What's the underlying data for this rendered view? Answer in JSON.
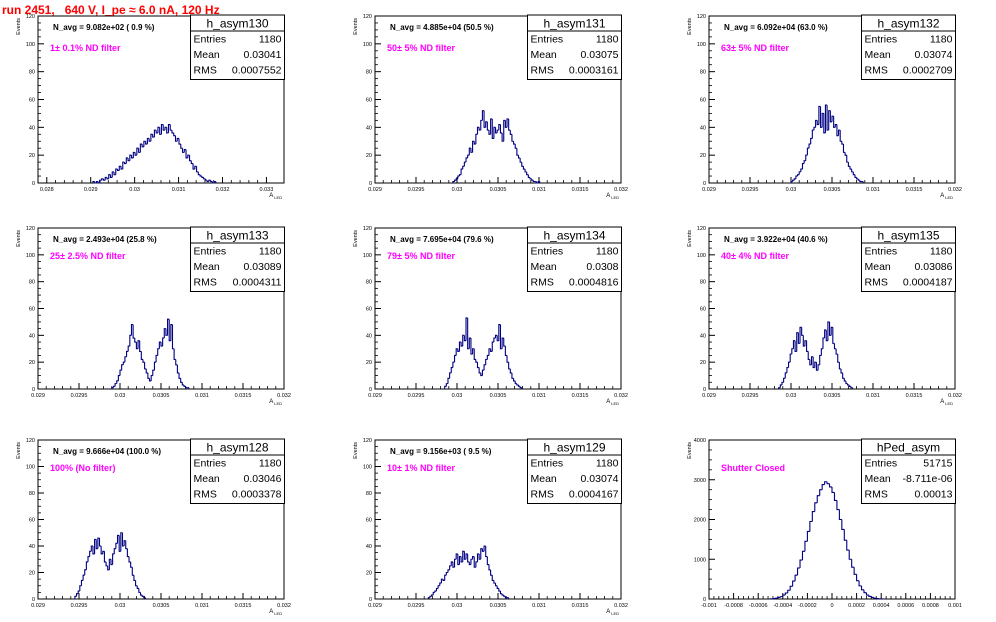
{
  "header": {
    "title": "run 2451,   640 V, I_pe ≈ 6.0 nA, 120 Hz"
  },
  "colors": {
    "histogram": "#000080",
    "title": "#ff0000",
    "filter_label": "#ff00ff"
  },
  "stats_labels": {
    "entries": "Entries",
    "mean": "Mean",
    "rms": "RMS"
  },
  "chart_data": [
    {
      "type": "histogram",
      "name": "h_asym130",
      "navg": "N_avg = 9.082e+02 ( 0.9 %)",
      "filter": "1± 0.1% ND filter",
      "entries": "1180",
      "mean": "0.03041",
      "rms": "0.0007552",
      "ylabel": "Events",
      "xlabel": "A_LED",
      "xlim": [
        0.0278,
        0.0334
      ],
      "ylim": [
        0,
        120
      ],
      "xticks": [
        0.028,
        0.029,
        0.03,
        0.031,
        0.032,
        0.033
      ],
      "xtick_labels": [
        "0.028",
        "0.029",
        "0.03",
        "0.031",
        "0.032",
        "0.033"
      ],
      "yticks": [
        0,
        20,
        40,
        60,
        80,
        100,
        120
      ],
      "bins": {
        "start": 0.02905,
        "width": 4e-05,
        "counts": [
          1,
          0,
          1,
          0,
          2,
          3,
          2,
          4,
          3,
          6,
          4,
          8,
          6,
          10,
          9,
          12,
          10,
          15,
          14,
          18,
          16,
          20,
          18,
          22,
          20,
          25,
          22,
          28,
          26,
          30,
          28,
          32,
          30,
          35,
          33,
          38,
          36,
          40,
          35,
          42,
          38,
          40,
          36,
          42,
          38,
          36,
          34,
          30,
          32,
          28,
          25,
          22,
          24,
          18,
          20,
          16,
          14,
          10,
          12,
          8,
          6,
          5,
          4,
          3,
          2,
          1,
          2,
          1,
          0,
          1
        ]
      }
    },
    {
      "type": "histogram",
      "name": "h_asym131",
      "navg": "N_avg = 4.885e+04 (50.5 %)",
      "filter": "50± 5% ND filter",
      "entries": "1180",
      "mean": "0.03075",
      "rms": "0.0003161",
      "ylabel": "Events",
      "xlabel": "A_LED",
      "xlim": [
        0.029,
        0.032
      ],
      "ylim": [
        0,
        120
      ],
      "xticks": [
        0.029,
        0.0295,
        0.03,
        0.0305,
        0.031,
        0.0315,
        0.032
      ],
      "xtick_labels": [
        "0.029",
        "0.0295",
        "0.03",
        "0.0305",
        "0.031",
        "0.0315",
        "0.032"
      ],
      "yticks": [
        0,
        20,
        40,
        60,
        80,
        100,
        120
      ],
      "bins": {
        "start": 0.02995,
        "width": 2e-05,
        "counts": [
          1,
          2,
          3,
          5,
          6,
          10,
          12,
          15,
          18,
          20,
          25,
          22,
          30,
          28,
          35,
          40,
          38,
          45,
          52,
          40,
          44,
          38,
          35,
          46,
          32,
          40,
          36,
          38,
          42,
          36,
          30,
          45,
          40,
          46,
          38,
          35,
          30,
          28,
          25,
          20,
          18,
          15,
          12,
          10,
          8,
          6,
          4,
          3,
          2,
          1,
          1,
          0,
          1
        ]
      }
    },
    {
      "type": "histogram",
      "name": "h_asym132",
      "navg": "N_avg = 6.092e+04 (63.0 %)",
      "filter": "63± 5% ND filter",
      "entries": "1180",
      "mean": "0.03074",
      "rms": "0.0002709",
      "ylabel": "Events",
      "xlabel": "A_LED",
      "xlim": [
        0.029,
        0.032
      ],
      "ylim": [
        0,
        120
      ],
      "xticks": [
        0.029,
        0.0295,
        0.03,
        0.0305,
        0.031,
        0.0315,
        0.032
      ],
      "xtick_labels": [
        "0.029",
        "0.0295",
        "0.03",
        "0.0305",
        "0.031",
        "0.0315",
        "0.032"
      ],
      "yticks": [
        0,
        20,
        40,
        60,
        80,
        100,
        120
      ],
      "bins": {
        "start": 0.03,
        "width": 2e-05,
        "counts": [
          1,
          2,
          3,
          5,
          6,
          8,
          10,
          14,
          16,
          20,
          25,
          28,
          32,
          38,
          40,
          45,
          42,
          55,
          40,
          50,
          36,
          56,
          38,
          52,
          44,
          48,
          40,
          42,
          34,
          38,
          30,
          28,
          22,
          20,
          15,
          12,
          10,
          8,
          6,
          4,
          3,
          2,
          1,
          1
        ]
      }
    },
    {
      "type": "histogram",
      "name": "h_asym133",
      "navg": "N_avg = 2.493e+04 (25.8 %)",
      "filter": "25± 2.5% ND filter",
      "entries": "1180",
      "mean": "0.03089",
      "rms": "0.0004311",
      "ylabel": "Events",
      "xlabel": "A_LED",
      "xlim": [
        0.029,
        0.032
      ],
      "ylim": [
        0,
        120
      ],
      "xticks": [
        0.029,
        0.0295,
        0.03,
        0.0305,
        0.031,
        0.0315,
        0.032
      ],
      "xtick_labels": [
        "0.029",
        "0.0295",
        "0.03",
        "0.0305",
        "0.031",
        "0.0315",
        "0.032"
      ],
      "yticks": [
        0,
        20,
        40,
        60,
        80,
        100,
        120
      ],
      "bins": {
        "start": 0.0299,
        "width": 2e-05,
        "counts": [
          1,
          2,
          4,
          6,
          10,
          14,
          18,
          20,
          24,
          28,
          32,
          40,
          48,
          38,
          35,
          30,
          36,
          28,
          22,
          20,
          15,
          12,
          8,
          6,
          10,
          14,
          20,
          25,
          30,
          35,
          32,
          38,
          45,
          40,
          52,
          36,
          48,
          30,
          22,
          18,
          12,
          8,
          5,
          3,
          2,
          1,
          1
        ]
      }
    },
    {
      "type": "histogram",
      "name": "h_asym134",
      "navg": "N_avg = 7.695e+04 (79.6 %)",
      "filter": "79± 5% ND filter",
      "entries": "1180",
      "mean": "0.0308",
      "rms": "0.0004816",
      "ylabel": "Events",
      "xlabel": "A_LED",
      "xlim": [
        0.029,
        0.032
      ],
      "ylim": [
        0,
        120
      ],
      "xticks": [
        0.029,
        0.0295,
        0.03,
        0.0305,
        0.031,
        0.0315,
        0.032
      ],
      "xtick_labels": [
        "0.029",
        "0.0295",
        "0.03",
        "0.0305",
        "0.031",
        "0.0315",
        "0.032"
      ],
      "yticks": [
        0,
        20,
        40,
        60,
        80,
        100,
        120
      ],
      "bins": {
        "start": 0.02985,
        "width": 2e-05,
        "counts": [
          2,
          4,
          8,
          12,
          16,
          20,
          25,
          30,
          28,
          35,
          32,
          40,
          36,
          53,
          30,
          38,
          26,
          30,
          22,
          20,
          16,
          12,
          10,
          14,
          18,
          22,
          25,
          30,
          28,
          35,
          38,
          40,
          36,
          48,
          30,
          38,
          32,
          25,
          20,
          15,
          12,
          8,
          6,
          4,
          3,
          2,
          1
        ]
      }
    },
    {
      "type": "histogram",
      "name": "h_asym135",
      "navg": "N_avg = 3.922e+04 (40.6 %)",
      "filter": "40± 4% ND filter",
      "entries": "1180",
      "mean": "0.03086",
      "rms": "0.0004187",
      "ylabel": "Events",
      "xlabel": "A_LED",
      "xlim": [
        0.029,
        0.032
      ],
      "ylim": [
        0,
        120
      ],
      "xticks": [
        0.029,
        0.0295,
        0.03,
        0.0305,
        0.031,
        0.0315,
        0.032
      ],
      "xtick_labels": [
        "0.029",
        "0.0295",
        "0.03",
        "0.0305",
        "0.031",
        "0.0315",
        "0.032"
      ],
      "yticks": [
        0,
        20,
        40,
        60,
        80,
        100,
        120
      ],
      "bins": {
        "start": 0.02985,
        "width": 2e-05,
        "counts": [
          1,
          3,
          5,
          8,
          12,
          16,
          20,
          26,
          30,
          36,
          28,
          42,
          34,
          46,
          40,
          32,
          36,
          28,
          22,
          18,
          24,
          16,
          20,
          14,
          18,
          25,
          30,
          38,
          44,
          36,
          50,
          40,
          46,
          34,
          30,
          26,
          20,
          15,
          12,
          8,
          6,
          4,
          3,
          2,
          1
        ]
      }
    },
    {
      "type": "histogram",
      "name": "h_asym128",
      "navg": "N_avg = 9.666e+04 (100.0 %)",
      "filter": "100% (No filter)",
      "entries": "1180",
      "mean": "0.03046",
      "rms": "0.0003378",
      "ylabel": "Events",
      "xlabel": "A_LED",
      "xlim": [
        0.029,
        0.032
      ],
      "ylim": [
        0,
        120
      ],
      "xticks": [
        0.029,
        0.0295,
        0.03,
        0.0305,
        0.031,
        0.0315,
        0.032
      ],
      "xtick_labels": [
        "0.029",
        "0.0295",
        "0.03",
        "0.0305",
        "0.031",
        "0.0315",
        "0.032"
      ],
      "yticks": [
        0,
        20,
        40,
        60,
        80,
        100,
        120
      ],
      "bins": {
        "start": 0.02945,
        "width": 2e-05,
        "counts": [
          2,
          4,
          6,
          10,
          14,
          18,
          22,
          28,
          32,
          36,
          40,
          34,
          45,
          38,
          46,
          40,
          34,
          36,
          28,
          25,
          22,
          30,
          26,
          34,
          38,
          42,
          48,
          36,
          50,
          40,
          44,
          38,
          32,
          28,
          24,
          18,
          14,
          10,
          8,
          5,
          3,
          2,
          1
        ]
      }
    },
    {
      "type": "histogram",
      "name": "h_asym129",
      "navg": "N_avg = 9.156e+03 ( 9.5 %)",
      "filter": "10± 1% ND filter",
      "entries": "1180",
      "mean": "0.03074",
      "rms": "0.0004167",
      "ylabel": "Events",
      "xlabel": "A_LED",
      "xlim": [
        0.029,
        0.032
      ],
      "ylim": [
        0,
        120
      ],
      "xticks": [
        0.029,
        0.0295,
        0.03,
        0.0305,
        0.031,
        0.0315,
        0.032
      ],
      "xtick_labels": [
        "0.029",
        "0.0295",
        "0.03",
        "0.0305",
        "0.031",
        "0.0315",
        "0.032"
      ],
      "yticks": [
        0,
        20,
        40,
        60,
        80,
        100,
        120
      ],
      "bins": {
        "start": 0.02965,
        "width": 2e-05,
        "counts": [
          1,
          2,
          3,
          5,
          6,
          8,
          10,
          12,
          15,
          14,
          18,
          20,
          22,
          25,
          28,
          24,
          30,
          34,
          26,
          32,
          28,
          36,
          30,
          34,
          28,
          26,
          30,
          32,
          24,
          28,
          34,
          30,
          38,
          36,
          40,
          32,
          26,
          22,
          18,
          14,
          12,
          10,
          8,
          6,
          4,
          3,
          2,
          1,
          1
        ]
      }
    },
    {
      "type": "histogram",
      "name": "hPed_asym",
      "navg": "",
      "filter": "Shutter Closed",
      "entries": "51715",
      "mean": "-8.711e-06",
      "rms": "0.00013",
      "ylabel": "Events",
      "xlabel": "",
      "xlim": [
        -0.001,
        0.001
      ],
      "ylim": [
        0,
        4000
      ],
      "xticks": [
        -0.001,
        -0.0008,
        -0.0006,
        -0.0004,
        -0.0002,
        0,
        0.0002,
        0.0004,
        0.0006,
        0.0008,
        0.001
      ],
      "xtick_labels": [
        "-0.001",
        "-0.0008",
        "-0.0006",
        "-0.0004",
        "-0.0002",
        "0",
        "0.0002",
        "0.0004",
        "0.0006",
        "0.0008",
        "0.001"
      ],
      "yticks": [
        0,
        1000,
        2000,
        3000,
        4000
      ],
      "bins": {
        "start": -0.0005,
        "width": 2e-05,
        "counts": [
          5,
          10,
          20,
          40,
          60,
          100,
          150,
          220,
          320,
          450,
          600,
          780,
          980,
          1200,
          1450,
          1700,
          1950,
          2200,
          2420,
          2600,
          2750,
          2880,
          2950,
          2900,
          2820,
          2680,
          2480,
          2250,
          2000,
          1750,
          1480,
          1230,
          1000,
          800,
          620,
          460,
          330,
          230,
          160,
          100,
          65,
          40,
          22,
          12,
          6,
          3
        ]
      }
    }
  ]
}
